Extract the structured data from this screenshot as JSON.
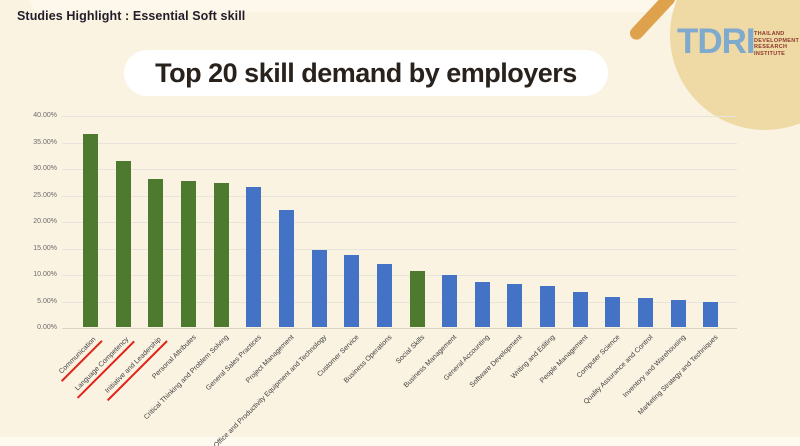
{
  "page": {
    "header": "Studies Highlight : Essential Soft skill",
    "title": "Top 20 skill demand by employers",
    "background_color": "#FBF3E2"
  },
  "logo": {
    "acronym": "TDRI",
    "line1": "THAILAND",
    "line2": "DEVELOPMENT",
    "line3": "RESEARCH",
    "line4": "INSTITUTE",
    "circle_color": "#EFD9A5",
    "stick_color": "#DFA24C",
    "acronym_color": "#7FA9CD",
    "text_color": "#8C392B"
  },
  "chart_data": {
    "type": "bar",
    "title": "Top 20 skill demand by employers",
    "categories": [
      "Communication",
      "Language Competency",
      "Initiative and Leadership",
      "Personal Attributes",
      "Critical Thinking and Problem Solving",
      "General Sales Practices",
      "Project Management",
      "Office and Productivity Equipment and Technology",
      "Customer Service",
      "Business Operations",
      "Social Skills",
      "Business Management",
      "General Accounting",
      "Software Development",
      "Writing and Editing",
      "People Management",
      "Computer Science",
      "Quality Assurance and Control",
      "Inventory and Warehousing",
      "Marketing Strategy and Techniques"
    ],
    "values": [
      36.5,
      31.3,
      28.0,
      27.5,
      27.2,
      26.5,
      22.0,
      14.6,
      13.5,
      11.9,
      10.5,
      9.9,
      8.5,
      8.1,
      7.8,
      6.6,
      5.7,
      5.4,
      5.1,
      4.7
    ],
    "unit": "%",
    "xlabel": "",
    "ylabel": "",
    "ylim": [
      0,
      40
    ],
    "yticks": [
      "40.00%",
      "35.00%",
      "30.00%",
      "25.00%",
      "20.00%",
      "15.00%",
      "10.00%",
      "5.00%",
      "0.00%"
    ],
    "grid": true,
    "legend_position": "none",
    "bar_color_green": "#4D7A2F",
    "bar_color_blue": "#4472C4",
    "green_bar_indices": [
      0,
      1,
      2,
      3,
      4,
      10
    ],
    "underline_color": "#E0251B",
    "underlined_label_indices": [
      0,
      1,
      2
    ]
  }
}
